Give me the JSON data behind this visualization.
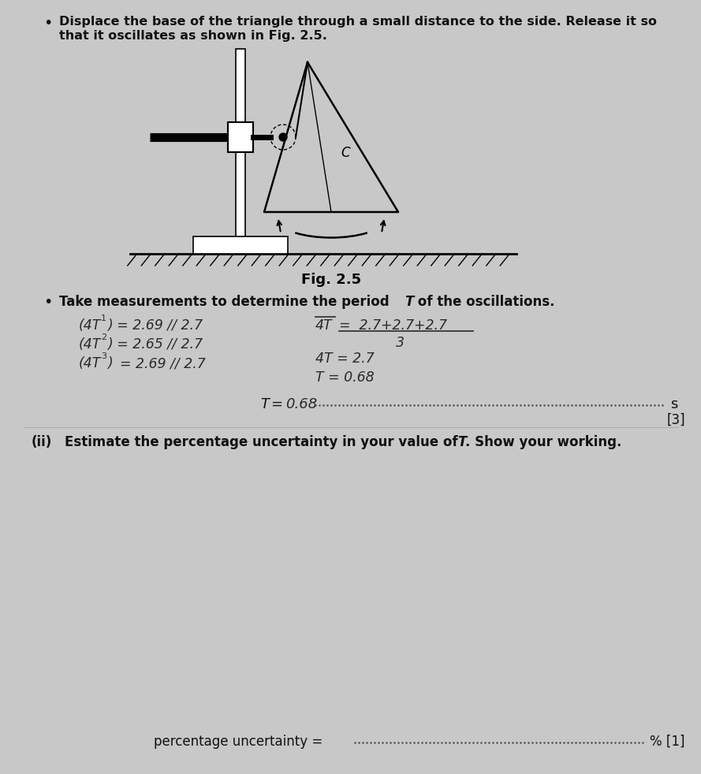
{
  "bg_color": "#c8c8c8",
  "page_color": "#d4d4d4",
  "bullet_text_1a": "Displace the base of the triangle through a small distance to the side. Release it so",
  "bullet_text_1b": "that it oscillates as shown in Fig. 2.5.",
  "fig_caption": "Fig. 2.5",
  "bullet_text_2": "Take measurements to determine the period ",
  "bullet_text_2b": "T",
  "bullet_text_2c": " of the oscillations.",
  "hw_line1_l": "(4T",
  "hw_line1_sub": "1",
  "hw_line1_r": ") = 2.69 // 2.7",
  "hw_line2_l": "(4T",
  "hw_line2_sub": "2",
  "hw_line2_r": ") = 2.65 // 2.7",
  "hw_line3_l": "(4T",
  "hw_line3_sub": "3",
  "hw_line3_r": ")",
  "hw_line3_r2": "= 2.69 // 2.7",
  "hw_rhs1": "4T  =  2.7+2.7+2.7",
  "hw_rhs_denom": "3",
  "hw_rhs2": "4T = 2.7",
  "hw_rhs3": "T = 0.68",
  "T_italic": "T",
  "T_equals": "= ",
  "T_value": "0.68",
  "T_unit": "s",
  "T_mark": "[3]",
  "part_ii_label": "(ii)",
  "part_ii_text": "  Estimate the percentage uncertainty in your value of ",
  "part_ii_T": "T",
  "part_ii_text2": ". Show your working.",
  "pct_label": "percentage uncertainty = ",
  "pct_unit": "% [1]",
  "handw_color": "#2a2a2a",
  "text_color": "#111111",
  "dotted_color": "#555555"
}
